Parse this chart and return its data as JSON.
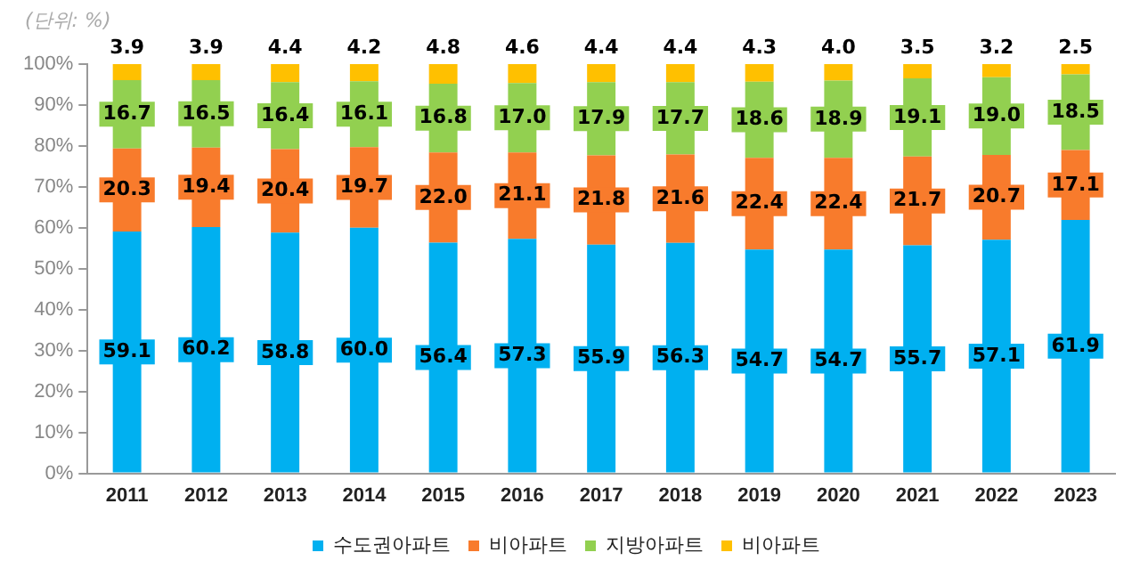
{
  "chart_data": {
    "type": "bar",
    "stacked": true,
    "annotations": [
      "(단위: %)"
    ],
    "categories": [
      "2011",
      "2012",
      "2013",
      "2014",
      "2015",
      "2016",
      "2017",
      "2018",
      "2019",
      "2020",
      "2021",
      "2022",
      "2023"
    ],
    "series": [
      {
        "name": "수도권아파트",
        "color": "#00b0f0",
        "values": [
          59.1,
          60.2,
          58.8,
          60.0,
          56.4,
          57.3,
          55.9,
          56.3,
          54.7,
          54.7,
          55.7,
          57.1,
          61.9
        ],
        "value_labels": [
          "59.1",
          "60.2",
          "58.8",
          "60.0",
          "56.4",
          "57.3",
          "55.9",
          "56.3",
          "54.7",
          "54.7",
          "55.7",
          "57.1",
          "61.9"
        ]
      },
      {
        "name": "비아파트",
        "color": "#f87b2c",
        "values": [
          20.3,
          19.4,
          20.4,
          19.7,
          22.0,
          21.1,
          21.8,
          21.6,
          22.4,
          22.4,
          21.7,
          20.7,
          17.1
        ],
        "value_labels": [
          "20.3",
          "19.4",
          "20.4",
          "19.7",
          "22.0",
          "21.1",
          "21.8",
          "21.6",
          "22.4",
          "22.4",
          "21.7",
          "20.7",
          "17.1"
        ]
      },
      {
        "name": "지방아파트",
        "color": "#92d050",
        "values": [
          16.7,
          16.5,
          16.4,
          16.1,
          16.8,
          17.0,
          17.9,
          17.7,
          18.6,
          18.9,
          19.1,
          19.0,
          18.5
        ],
        "value_labels": [
          "16.7",
          "16.5",
          "16.4",
          "16.1",
          "16.8",
          "17.0",
          "17.9",
          "17.7",
          "18.6",
          "18.9",
          "19.1",
          "19.0",
          "18.5"
        ]
      },
      {
        "name": "비아파트",
        "color": "#ffc000",
        "values": [
          3.9,
          3.9,
          4.4,
          4.2,
          4.8,
          4.6,
          4.4,
          4.4,
          4.3,
          4.0,
          3.5,
          3.2,
          2.5
        ],
        "value_labels": [
          "3.9",
          "3.9",
          "4.4",
          "4.2",
          "4.8",
          "4.6",
          "4.4",
          "4.4",
          "4.3",
          "4.0",
          "3.5",
          "3.2",
          "2.5"
        ]
      }
    ],
    "ylim": [
      0,
      100
    ],
    "yticks": [
      {
        "value": 0,
        "label": "0%"
      },
      {
        "value": 10,
        "label": "10%"
      },
      {
        "value": 20,
        "label": "20%"
      },
      {
        "value": 30,
        "label": "30%"
      },
      {
        "value": 40,
        "label": "40%"
      },
      {
        "value": 50,
        "label": "50%"
      },
      {
        "value": 60,
        "label": "60%"
      },
      {
        "value": 70,
        "label": "70%"
      },
      {
        "value": 80,
        "label": "80%"
      },
      {
        "value": 90,
        "label": "90%"
      },
      {
        "value": 100,
        "label": "100%"
      }
    ],
    "grid": false,
    "legend": "bottom"
  }
}
